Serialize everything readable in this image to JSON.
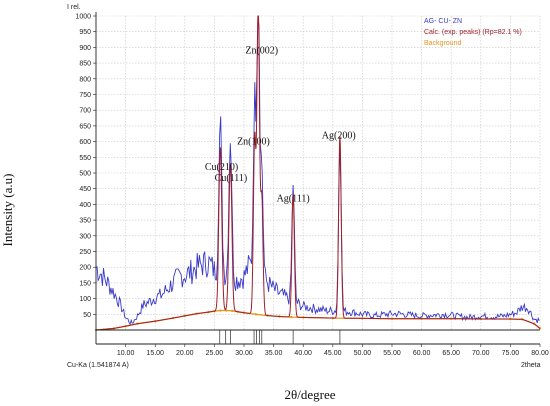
{
  "chart_data": {
    "type": "line",
    "ylabel": "Intensity (a.u)",
    "xlabel": "2θ/degree",
    "inner_y_title": "I rel.",
    "inner_x_title": "2theta",
    "radiation_label": "Cu-Ka (1.541874 A)",
    "xlim": [
      5,
      80
    ],
    "ylim": [
      0,
      1000
    ],
    "x_ticks": [
      "10.00",
      "15.00",
      "20.00",
      "25.00",
      "30.00",
      "35.00",
      "40.00",
      "45.00",
      "50.00",
      "55.00",
      "60.00",
      "65.00",
      "70.00",
      "75.00",
      "80.00"
    ],
    "y_ticks": [
      "50",
      "100",
      "150",
      "200",
      "250",
      "300",
      "350",
      "400",
      "450",
      "500",
      "550",
      "600",
      "650",
      "700",
      "750",
      "800",
      "850",
      "900",
      "950",
      "1000"
    ],
    "legend": [
      {
        "name": "AG- CU- ZN",
        "color": "#3a3ac8"
      },
      {
        "name": "Calc. (exp. peaks) (Rp=82.1 %)",
        "color": "#a0202a"
      },
      {
        "name": "Background",
        "color": "#e8961e"
      }
    ],
    "peak_labels": [
      {
        "text": "Cu(210)",
        "x": 26.2,
        "y": 510
      },
      {
        "text": "Cu(111)",
        "x": 27.8,
        "y": 475
      },
      {
        "text": "Zn(100)",
        "x": 31.6,
        "y": 590
      },
      {
        "text": "Zn(002)",
        "x": 33.0,
        "y": 880
      },
      {
        "text": "Ag(111)",
        "x": 38.3,
        "y": 410
      },
      {
        "text": "Ag(200)",
        "x": 46.0,
        "y": 610
      }
    ],
    "calc_peaks": [
      {
        "x": 26.0,
        "height": 520,
        "width": 0.35
      },
      {
        "x": 27.7,
        "height": 470,
        "width": 0.35
      },
      {
        "x": 31.8,
        "height": 560,
        "width": 0.3
      },
      {
        "x": 32.4,
        "height": 990,
        "width": 0.3
      },
      {
        "x": 33.0,
        "height": 370,
        "width": 0.3
      },
      {
        "x": 38.3,
        "height": 390,
        "width": 0.3
      },
      {
        "x": 46.2,
        "height": 580,
        "width": 0.3
      }
    ],
    "peak_markers": [
      25.9,
      26.9,
      27.7,
      31.7,
      32.1,
      32.6,
      33.0,
      38.3,
      46.2
    ],
    "background": {
      "x": [
        5,
        8,
        10,
        12,
        15,
        18,
        20,
        22,
        24,
        25,
        26,
        27,
        28,
        29,
        30,
        32,
        34,
        36,
        38,
        40,
        45,
        50,
        55,
        60,
        65,
        70,
        75,
        77,
        79,
        80
      ],
      "y": [
        0,
        5,
        12,
        20,
        28,
        38,
        45,
        52,
        57,
        60,
        62,
        62,
        61,
        58,
        55,
        50,
        46,
        43,
        41,
        40,
        38,
        37,
        36,
        36,
        36,
        35,
        35,
        34,
        20,
        5
      ]
    },
    "observed_anchors": {
      "x": [
        5,
        6,
        7,
        8,
        9,
        10,
        11,
        12,
        13,
        14,
        15,
        16,
        17,
        18,
        19,
        20,
        21,
        22,
        23,
        24,
        25,
        26,
        27,
        28,
        29,
        30,
        31,
        32,
        33,
        34,
        35,
        36,
        37,
        38,
        39,
        40,
        42,
        44,
        46,
        48,
        50,
        52,
        54,
        56,
        58,
        60,
        62,
        64,
        66,
        68,
        70,
        72,
        74,
        76,
        77,
        78,
        79,
        80
      ],
      "y": [
        200,
        175,
        150,
        120,
        85,
        40,
        20,
        45,
        80,
        90,
        105,
        110,
        130,
        150,
        170,
        175,
        185,
        200,
        210,
        215,
        190,
        170,
        175,
        160,
        160,
        170,
        210,
        195,
        175,
        150,
        130,
        115,
        105,
        95,
        85,
        75,
        68,
        62,
        60,
        58,
        50,
        46,
        50,
        52,
        48,
        45,
        48,
        50,
        44,
        40,
        45,
        42,
        45,
        55,
        75,
        70,
        35,
        30
      ]
    }
  }
}
